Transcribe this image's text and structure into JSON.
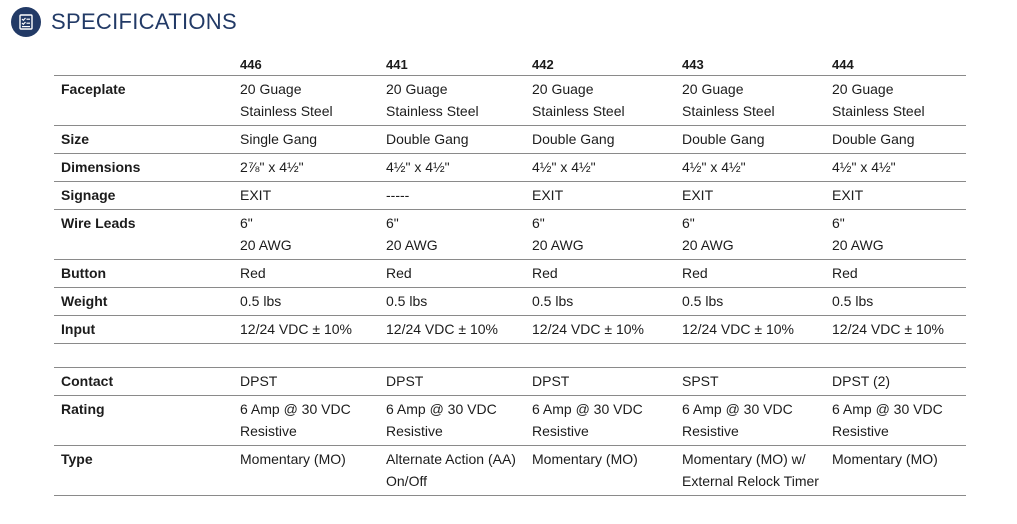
{
  "header": {
    "title": "SPECIFICATIONS",
    "icon": "checklist-icon"
  },
  "table": {
    "columns": [
      "",
      "446",
      "441",
      "442",
      "443",
      "444"
    ],
    "group1": [
      {
        "label": "Faceplate",
        "cells": [
          [
            "20 Guage",
            "Stainless Steel"
          ],
          [
            "20 Guage",
            "Stainless Steel"
          ],
          [
            "20 Guage",
            "Stainless Steel"
          ],
          [
            "20 Guage",
            "Stainless Steel"
          ],
          [
            "20 Guage",
            "Stainless Steel"
          ]
        ]
      },
      {
        "label": "Size",
        "cells": [
          [
            "Single Gang"
          ],
          [
            "Double Gang"
          ],
          [
            "Double Gang"
          ],
          [
            "Double Gang"
          ],
          [
            "Double Gang"
          ]
        ]
      },
      {
        "label": "Dimensions",
        "cells": [
          [
            "2⅞\" x 4½\""
          ],
          [
            "4½\" x 4½\""
          ],
          [
            "4½\" x 4½\""
          ],
          [
            "4½\" x 4½\""
          ],
          [
            "4½\" x 4½\""
          ]
        ]
      },
      {
        "label": "Signage",
        "cells": [
          [
            "EXIT"
          ],
          [
            "-----"
          ],
          [
            "EXIT"
          ],
          [
            "EXIT"
          ],
          [
            "EXIT"
          ]
        ]
      },
      {
        "label": "Wire Leads",
        "cells": [
          [
            "6\"",
            "20 AWG"
          ],
          [
            "6\"",
            "20 AWG"
          ],
          [
            "6\"",
            "20 AWG"
          ],
          [
            "6\"",
            "20 AWG"
          ],
          [
            "6\"",
            "20 AWG"
          ]
        ]
      },
      {
        "label": "Button",
        "cells": [
          [
            "Red"
          ],
          [
            "Red"
          ],
          [
            "Red"
          ],
          [
            "Red"
          ],
          [
            "Red"
          ]
        ]
      },
      {
        "label": "Weight",
        "cells": [
          [
            "0.5 lbs"
          ],
          [
            "0.5 lbs"
          ],
          [
            "0.5 lbs"
          ],
          [
            "0.5 lbs"
          ],
          [
            "0.5 lbs"
          ]
        ]
      },
      {
        "label": "Input",
        "cells": [
          [
            "12/24 VDC ± 10%"
          ],
          [
            "12/24 VDC ± 10%"
          ],
          [
            "12/24 VDC ± 10%"
          ],
          [
            "12/24 VDC ± 10%"
          ],
          [
            "12/24 VDC ± 10%"
          ]
        ]
      }
    ],
    "group2": [
      {
        "label": "Contact",
        "cells": [
          [
            "DPST"
          ],
          [
            "DPST"
          ],
          [
            "DPST"
          ],
          [
            "SPST"
          ],
          [
            "DPST (2)"
          ]
        ]
      },
      {
        "label": "Rating",
        "cells": [
          [
            "6 Amp @ 30 VDC",
            "Resistive"
          ],
          [
            "6 Amp @ 30 VDC",
            "Resistive"
          ],
          [
            "6 Amp @ 30 VDC",
            "Resistive"
          ],
          [
            "6 Amp @ 30 VDC",
            "Resistive"
          ],
          [
            "6 Amp @ 30 VDC",
            "Resistive"
          ]
        ]
      },
      {
        "label": "Type",
        "cells": [
          [
            "Momentary (MO)"
          ],
          [
            "Alternate Action (AA)",
            "On/Off"
          ],
          [
            "Momentary (MO)"
          ],
          [
            "Momentary (MO) w/",
            "External Relock Timer"
          ],
          [
            "Momentary (MO)"
          ]
        ]
      }
    ]
  }
}
